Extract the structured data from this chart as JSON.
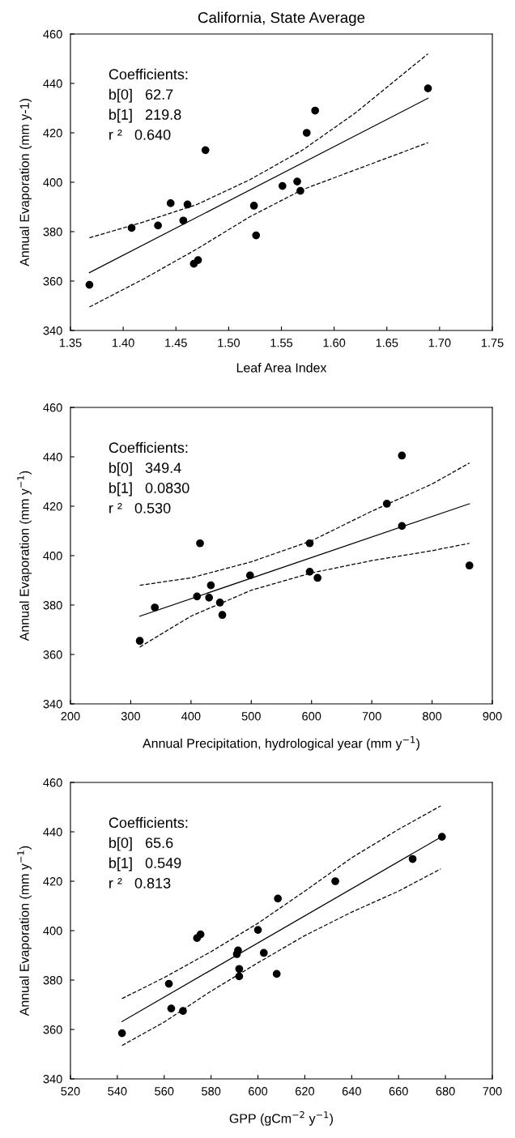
{
  "chart_data": [
    {
      "type": "scatter",
      "title": "California, State Average",
      "xlabel": "Leaf Area Index",
      "ylabel": "Annual Evaporation (mm y-1)",
      "xlim": [
        1.35,
        1.75
      ],
      "xticks": [
        {
          "value": 1.35,
          "label": "1.35"
        },
        {
          "value": 1.4,
          "label": "1.40"
        },
        {
          "value": 1.45,
          "label": "1.45"
        },
        {
          "value": 1.5,
          "label": "1.50"
        },
        {
          "value": 1.55,
          "label": "1.55"
        },
        {
          "value": 1.6,
          "label": "1.60"
        },
        {
          "value": 1.65,
          "label": "1.65"
        },
        {
          "value": 1.7,
          "label": "1.70"
        },
        {
          "value": 1.75,
          "label": "1.75"
        }
      ],
      "ylim": [
        340,
        460
      ],
      "yticks": [
        340,
        360,
        380,
        400,
        420,
        440,
        460
      ],
      "grid": false,
      "legend": false,
      "annotations": [
        "Coefficients:",
        "b[0]   62.7",
        "b[1]   219.8",
        "r ²   0.640"
      ],
      "series": [
        {
          "marker": "circle",
          "color": "#000000",
          "x": [
            1.368,
            1.408,
            1.433,
            1.445,
            1.457,
            1.461,
            1.467,
            1.471,
            1.478,
            1.524,
            1.526,
            1.551,
            1.565,
            1.568,
            1.574,
            1.582,
            1.689
          ],
          "values": [
            358.5,
            381.5,
            382.5,
            391.5,
            384.5,
            391,
            367,
            368.5,
            413,
            390.5,
            378.5,
            398.5,
            400.3,
            396.5,
            420,
            429,
            438
          ]
        },
        {
          "type": "line",
          "line_style": "solid",
          "marker": "none",
          "color": "#000000",
          "x": [
            1.368,
            1.689
          ],
          "values": [
            363.4,
            434.0
          ]
        },
        {
          "type": "line",
          "line_style": "dashed",
          "marker": "none",
          "color": "#000000",
          "x": [
            1.368,
            1.42,
            1.47,
            1.52,
            1.57,
            1.62,
            1.689
          ],
          "values": [
            377.5,
            384,
            391,
            401,
            413,
            428,
            452
          ]
        },
        {
          "type": "line",
          "line_style": "dashed",
          "marker": "none",
          "color": "#000000",
          "x": [
            1.368,
            1.42,
            1.47,
            1.52,
            1.57,
            1.62,
            1.689
          ],
          "values": [
            349.5,
            361,
            373,
            386,
            397,
            405,
            416
          ]
        }
      ]
    },
    {
      "type": "scatter",
      "xlabel": "Annual Precipitation, hydrological year (mm y$^{−1}$)",
      "ylabel": "Annual Evaporation (mm y$^{−1}$)",
      "xlim": [
        200,
        900
      ],
      "xticks": [
        200,
        300,
        400,
        500,
        600,
        700,
        800,
        900
      ],
      "ylim": [
        340,
        460
      ],
      "yticks": [
        340,
        360,
        380,
        400,
        420,
        440,
        460
      ],
      "grid": false,
      "legend": false,
      "annotations": [
        "Coefficients:",
        "b[0]   349.4",
        "b[1]   0.0830",
        "r ²   0.530"
      ],
      "series": [
        {
          "marker": "circle",
          "color": "#000000",
          "x": [
            315,
            340,
            410,
            415,
            430,
            433,
            448,
            452,
            498,
            597,
            597,
            610,
            725,
            750,
            750,
            862
          ],
          "values": [
            365.5,
            379,
            383.5,
            405,
            383,
            388,
            381,
            376,
            392,
            405,
            393.5,
            391,
            421,
            412,
            440.5,
            396
          ]
        },
        {
          "type": "line",
          "line_style": "solid",
          "marker": "none",
          "color": "#000000",
          "x": [
            315,
            862
          ],
          "values": [
            375.5,
            421.0
          ]
        },
        {
          "type": "line",
          "line_style": "dashed",
          "marker": "none",
          "color": "#000000",
          "x": [
            315,
            400,
            500,
            600,
            700,
            800,
            862
          ],
          "values": [
            388,
            391,
            397.5,
            406,
            418,
            429,
            437.5
          ]
        },
        {
          "type": "line",
          "line_style": "dashed",
          "marker": "none",
          "color": "#000000",
          "x": [
            315,
            400,
            500,
            600,
            700,
            800,
            862
          ],
          "values": [
            363,
            375.5,
            386,
            393,
            398,
            402,
            405
          ]
        }
      ]
    },
    {
      "type": "scatter",
      "xlabel": "GPP (gCm$^{−2}$ y$^{−1}$)",
      "ylabel": "Annual Evaporation (mm y$^{−1}$)",
      "xlim": [
        520,
        700
      ],
      "xticks": [
        520,
        540,
        560,
        580,
        600,
        620,
        640,
        660,
        680,
        700
      ],
      "ylim": [
        340,
        460
      ],
      "yticks": [
        340,
        360,
        380,
        400,
        420,
        440,
        460
      ],
      "grid": false,
      "legend": false,
      "annotations": [
        "Coefficients:",
        "b[0]   65.6",
        "b[1]   0.549",
        "r ²   0.813"
      ],
      "series": [
        {
          "marker": "circle",
          "color": "#000000",
          "x": [
            542,
            562,
            563,
            568,
            574,
            575.5,
            591,
            591.5,
            592,
            592,
            600,
            602.5,
            608.5,
            608,
            633,
            666,
            678.5
          ],
          "values": [
            358.5,
            378.5,
            368.5,
            367.5,
            397,
            398.5,
            390.5,
            392,
            384.5,
            381.5,
            400.3,
            391,
            413,
            382.5,
            420,
            429,
            438
          ]
        },
        {
          "type": "line",
          "line_style": "solid",
          "marker": "none",
          "color": "#000000",
          "x": [
            542,
            678.5
          ],
          "values": [
            363.2,
            438.1
          ]
        },
        {
          "type": "line",
          "line_style": "dashed",
          "marker": "none",
          "color": "#000000",
          "x": [
            542,
            560,
            580,
            600,
            620,
            640,
            660,
            678
          ],
          "values": [
            372.5,
            381,
            391.5,
            403,
            416,
            429.5,
            441,
            450.5
          ]
        },
        {
          "type": "line",
          "line_style": "dashed",
          "marker": "none",
          "color": "#000000",
          "x": [
            542,
            560,
            580,
            600,
            620,
            640,
            660,
            678
          ],
          "values": [
            353.5,
            363,
            375.5,
            387,
            398,
            407.5,
            416,
            425
          ]
        }
      ]
    }
  ]
}
